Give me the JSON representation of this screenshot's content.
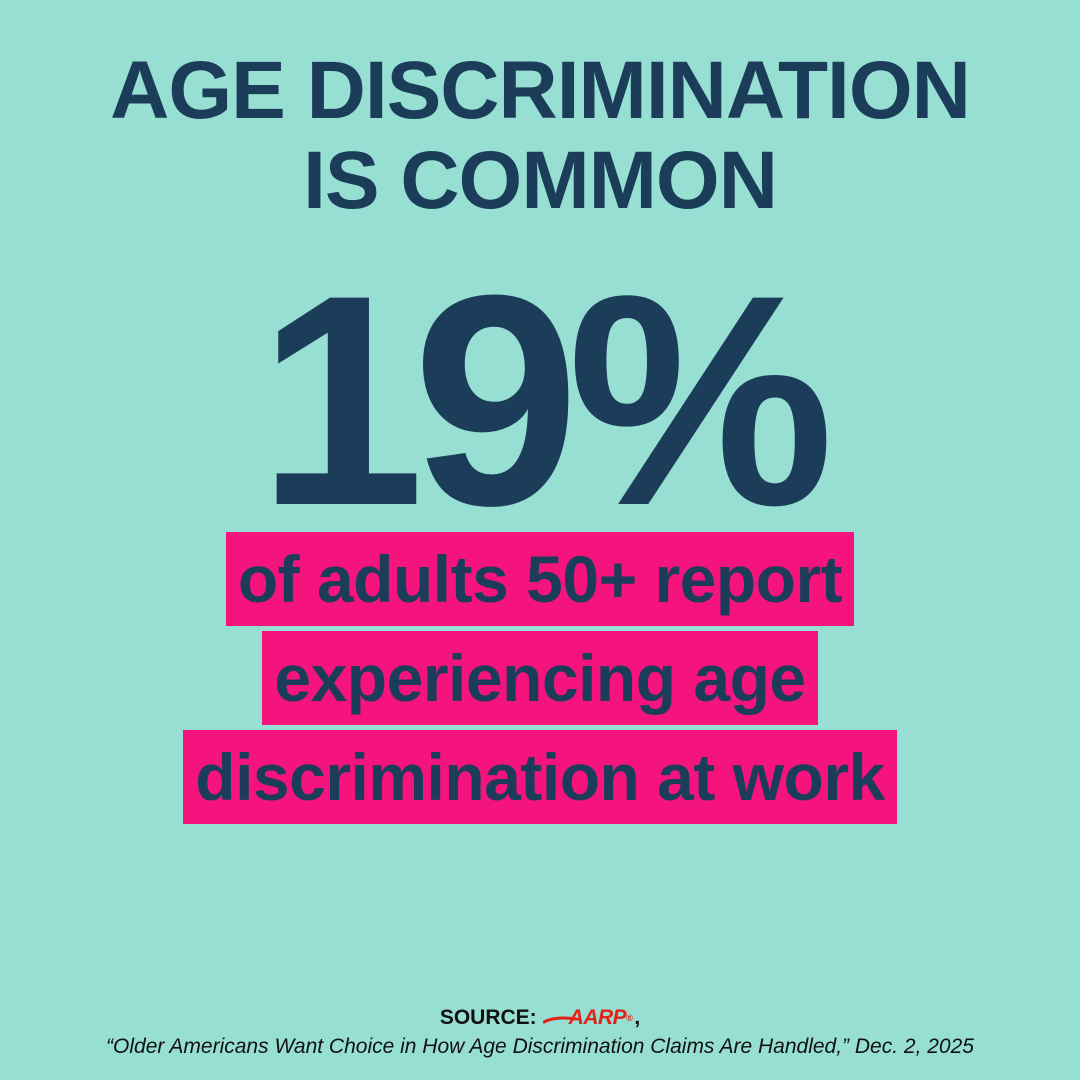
{
  "headline": {
    "line1": "AGE DISCRIMINATION",
    "line2": "IS COMMON"
  },
  "stat": {
    "value": "19%"
  },
  "caption": {
    "lines": [
      "of adults 50+ report",
      "experiencing age",
      "discrimination at work"
    ]
  },
  "source": {
    "label": "SOURCE:",
    "logo_text": "AARP",
    "registered_mark": "®",
    "comma": ",",
    "citation": "“Older Americans Want Choice in How Age Discrimination Claims Are Handled,” Dec. 2, 2025"
  },
  "colors": {
    "background": "#96dfd2",
    "text": "#1c3d5a",
    "highlight": "#f5137d",
    "logo": "#e2231a"
  }
}
